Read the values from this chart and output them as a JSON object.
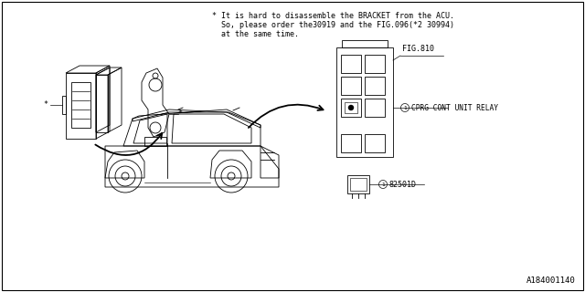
{
  "background_color": "#ffffff",
  "border_color": "#000000",
  "diagram_id": "A184001140",
  "note_line1": "* It is hard to disassemble the BRACKET from the ACU.",
  "note_line2": "  So, please order the30919 and the FIG.096(*2 30994)",
  "note_line3": "  at the same time.",
  "fig_label": "FIG.810",
  "relay_label": "CPRG CONT UNIT RELAY",
  "part_label": "82501D",
  "font_size_note": 6.0,
  "font_size_labels": 6.0,
  "font_size_id": 6.5,
  "lw": 0.6
}
